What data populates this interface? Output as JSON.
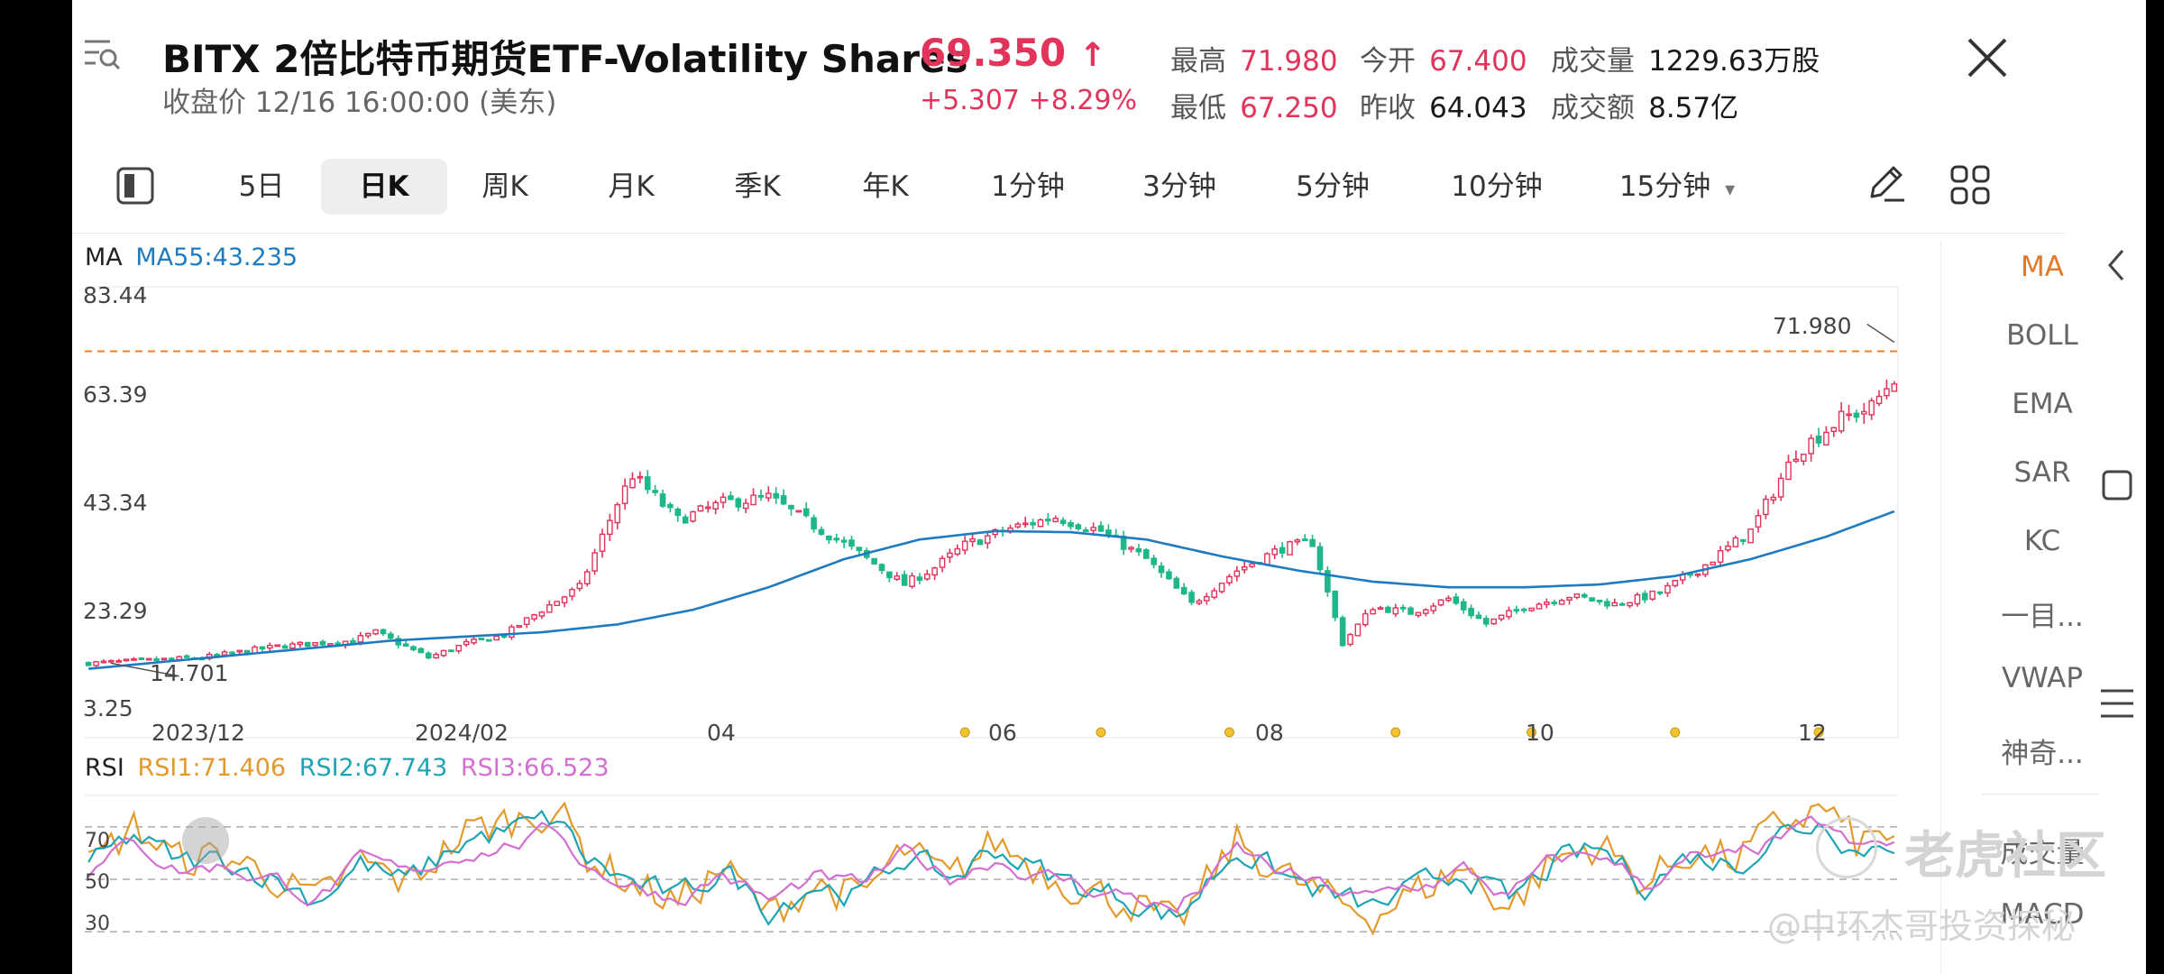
{
  "header": {
    "menu_icon": "list-search-icon",
    "title": "BITX  2倍比特币期货ETF-Volatility Shares",
    "subtitle": "收盘价 12/16 16:00:00 (美东)",
    "price": "69.350",
    "price_arrow": "↑",
    "change": "+5.307  +8.29%",
    "stats": [
      {
        "label": "最高",
        "value": "71.980",
        "color": "#e2345b"
      },
      {
        "label": "最低",
        "value": "67.250",
        "color": "#e2345b"
      },
      {
        "label": "今开",
        "value": "67.400",
        "color": "#e2345b"
      },
      {
        "label": "昨收",
        "value": "64.043",
        "color": "#1a1a1a"
      },
      {
        "label": "成交量",
        "value": "1229.63万股",
        "color": "#1a1a1a"
      },
      {
        "label": "成交额",
        "value": "8.57亿",
        "color": "#1a1a1a"
      }
    ],
    "close_icon": "close-icon"
  },
  "toolbar": {
    "tabs": [
      "5日",
      "日K",
      "周K",
      "月K",
      "季K",
      "年K",
      "1分钟",
      "3分钟",
      "5分钟",
      "10分钟",
      "15分钟"
    ],
    "active_tab": "日K",
    "dropdown_arrow": "▾"
  },
  "indicators": [
    "MA",
    "BOLL",
    "EMA",
    "SAR",
    "KC",
    "一目...",
    "VWAP",
    "神奇...",
    "成交量",
    "MACD"
  ],
  "active_indicator": "MA",
  "watermark": {
    "brand": "老虎社区",
    "author": "@中环杰哥投资探秘"
  },
  "chart_data": {
    "type": "candlestick",
    "ma_legend": {
      "label": "MA",
      "ma55": "MA55:43.235"
    },
    "y_ticks": [
      "83.44",
      "63.39",
      "43.34",
      "23.29",
      "3.25"
    ],
    "y_range": [
      3.25,
      83.44
    ],
    "x_ticks": [
      "2023/12",
      "2024/02",
      "04",
      "06",
      "08",
      "10",
      "12"
    ],
    "max_label": "71.980",
    "min_label": "14.701",
    "reference_line": 71.98,
    "ma55_path": [
      [
        0,
        15.5
      ],
      [
        20,
        18.0
      ],
      [
        40,
        20.5
      ],
      [
        60,
        22.0
      ],
      [
        70,
        23.4
      ],
      [
        80,
        26.0
      ],
      [
        90,
        30.0
      ],
      [
        100,
        35.0
      ],
      [
        110,
        38.5
      ],
      [
        120,
        40.0
      ],
      [
        130,
        39.8
      ],
      [
        140,
        38.5
      ],
      [
        150,
        35.5
      ],
      [
        160,
        33.0
      ],
      [
        170,
        31.0
      ],
      [
        180,
        30.0
      ],
      [
        190,
        30.0
      ],
      [
        200,
        30.5
      ],
      [
        210,
        32.0
      ],
      [
        220,
        35.0
      ],
      [
        230,
        39.0
      ],
      [
        240,
        44.0
      ]
    ],
    "candle_series": {
      "count": 240,
      "close_path": [
        [
          0,
          16.5
        ],
        [
          15,
          17.5
        ],
        [
          25,
          19.5
        ],
        [
          35,
          20.5
        ],
        [
          38,
          22.0
        ],
        [
          45,
          17.5
        ],
        [
          50,
          20.0
        ],
        [
          55,
          21.5
        ],
        [
          60,
          26.0
        ],
        [
          65,
          30.0
        ],
        [
          70,
          45.0
        ],
        [
          72,
          50.0
        ],
        [
          78,
          42.0
        ],
        [
          84,
          45.0
        ],
        [
          90,
          46.0
        ],
        [
          96,
          41.0
        ],
        [
          102,
          36.0
        ],
        [
          108,
          30.5
        ],
        [
          112,
          33.5
        ],
        [
          116,
          37.5
        ],
        [
          122,
          40.5
        ],
        [
          128,
          42.5
        ],
        [
          134,
          40.0
        ],
        [
          140,
          35.0
        ],
        [
          146,
          27.0
        ],
        [
          152,
          33.0
        ],
        [
          158,
          37.0
        ],
        [
          162,
          38.0
        ],
        [
          166,
          20.0
        ],
        [
          170,
          26.5
        ],
        [
          175,
          25.5
        ],
        [
          180,
          28.0
        ],
        [
          185,
          23.5
        ],
        [
          190,
          26.5
        ],
        [
          196,
          28.5
        ],
        [
          202,
          27.0
        ],
        [
          208,
          29.0
        ],
        [
          214,
          34.0
        ],
        [
          220,
          40.0
        ],
        [
          226,
          54.0
        ],
        [
          232,
          60.0
        ],
        [
          236,
          62.0
        ],
        [
          240,
          69.3
        ]
      ]
    },
    "event_markers_x": [
      116,
      134,
      151,
      173,
      191,
      210,
      229
    ],
    "rsi_legend": {
      "label": "RSI",
      "rsi1": "RSI1:71.406",
      "rsi2": "RSI2:67.743",
      "rsi3": "RSI3:66.523"
    },
    "rsi_ticks": [
      "70",
      "50",
      "30"
    ],
    "rsi_range": [
      18,
      82
    ],
    "rsi1_path": [
      [
        0,
        55
      ],
      [
        6,
        72
      ],
      [
        12,
        58
      ],
      [
        18,
        60
      ],
      [
        24,
        52
      ],
      [
        30,
        40
      ],
      [
        36,
        58
      ],
      [
        42,
        48
      ],
      [
        50,
        70
      ],
      [
        56,
        75
      ],
      [
        62,
        80
      ],
      [
        66,
        60
      ],
      [
        72,
        48
      ],
      [
        78,
        40
      ],
      [
        84,
        55
      ],
      [
        90,
        35
      ],
      [
        96,
        48
      ],
      [
        102,
        42
      ],
      [
        108,
        62
      ],
      [
        114,
        50
      ],
      [
        120,
        66
      ],
      [
        126,
        54
      ],
      [
        132,
        45
      ],
      [
        138,
        40
      ],
      [
        144,
        30
      ],
      [
        152,
        66
      ],
      [
        158,
        52
      ],
      [
        164,
        42
      ],
      [
        170,
        35
      ],
      [
        176,
        45
      ],
      [
        182,
        55
      ],
      [
        188,
        38
      ],
      [
        194,
        58
      ],
      [
        200,
        65
      ],
      [
        206,
        48
      ],
      [
        212,
        62
      ],
      [
        218,
        58
      ],
      [
        224,
        74
      ],
      [
        230,
        80
      ],
      [
        234,
        65
      ],
      [
        240,
        71
      ]
    ],
    "colors": {
      "up": "#e2345b",
      "down": "#1fb78a",
      "ma55": "#1f7bc0",
      "rsi1": "#e49a2b",
      "rsi2": "#1ea5b5",
      "rsi3": "#d46fd2",
      "ref_line": "#f07f2a",
      "marker": "#f2c230"
    }
  }
}
